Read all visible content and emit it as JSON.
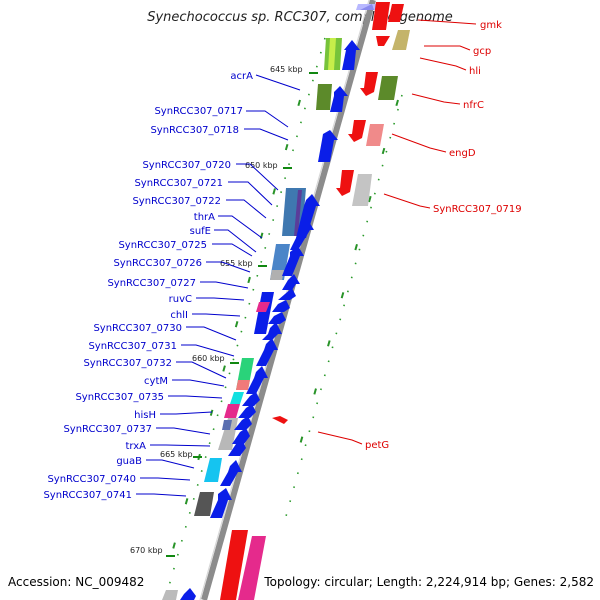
{
  "title": "Synechococcus sp. RCC307, complete genome",
  "accession": "Accession: NC_009482",
  "summary": "Topology: circular; Length: 2,224,914 bp; Genes: 2,582",
  "colors": {
    "forward_label": "#0000cc",
    "reverse_label": "#dd0000",
    "backbone": "#8c8c8c",
    "tick": "#118811",
    "cds_forward": "#0a1ee8",
    "cds_reverse": "#ee1111"
  },
  "ticks": [
    "645 kbp",
    "650 kbp",
    "655 kbp",
    "660 kbp",
    "665 kbp",
    "670 kbp"
  ],
  "forward_genes": [
    "acrA",
    "SynRCC307_0717",
    "SynRCC307_0718",
    "SynRCC307_0720",
    "SynRCC307_0721",
    "SynRCC307_0722",
    "thrA",
    "sufE",
    "SynRCC307_0725",
    "SynRCC307_0726",
    "SynRCC307_0727",
    "ruvC",
    "chlI",
    "SynRCC307_0730",
    "SynRCC307_0731",
    "SynRCC307_0732",
    "cytM",
    "SynRCC307_0735",
    "hisH",
    "SynRCC307_0737",
    "trxA",
    "guaB",
    "SynRCC307_0740",
    "SynRCC307_0741"
  ],
  "reverse_genes": [
    "gmk",
    "gcp",
    "hli",
    "nfrC",
    "engD",
    "SynRCC307_0719",
    "petG"
  ]
}
